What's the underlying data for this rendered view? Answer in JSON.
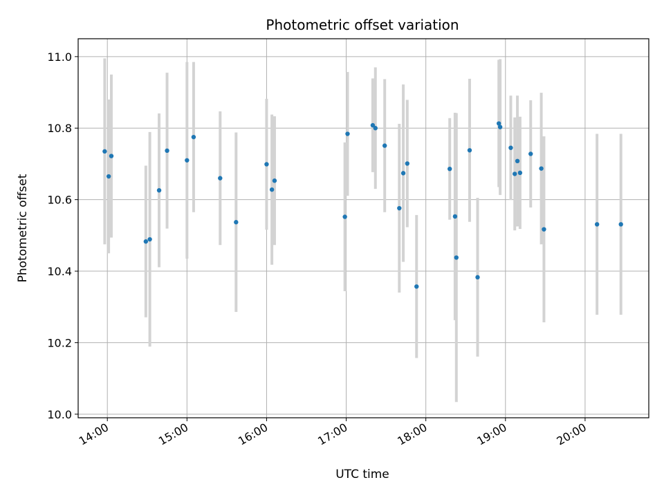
{
  "chart_data": {
    "type": "scatter",
    "title": "Photometric offset variation",
    "xlabel": "UTC time",
    "ylabel": "Photometric offset",
    "x_unit": "UTC hour",
    "xlim": [
      "13:38",
      "20:48"
    ],
    "ylim": [
      9.99,
      11.05
    ],
    "x_ticks": [
      "14:00",
      "15:00",
      "16:00",
      "17:00",
      "18:00",
      "19:00",
      "20:00"
    ],
    "y_ticks": [
      "10.0",
      "10.2",
      "10.4",
      "10.6",
      "10.8",
      "11.0"
    ],
    "grid": true,
    "point_color": "#1f77b4",
    "error_bar_color": "#d3d3d3",
    "points": [
      {
        "x": "13:58",
        "y": 10.735,
        "err": 0.26
      },
      {
        "x": "14:01",
        "y": 10.665,
        "err": 0.215
      },
      {
        "x": "14:03",
        "y": 10.722,
        "err": 0.228
      },
      {
        "x": "14:29",
        "y": 10.483,
        "err": 0.212
      },
      {
        "x": "14:32",
        "y": 10.489,
        "err": 0.3
      },
      {
        "x": "14:39",
        "y": 10.626,
        "err": 0.215
      },
      {
        "x": "14:45",
        "y": 10.737,
        "err": 0.218
      },
      {
        "x": "15:00",
        "y": 10.71,
        "err": 0.275
      },
      {
        "x": "15:05",
        "y": 10.775,
        "err": 0.21
      },
      {
        "x": "15:25",
        "y": 10.66,
        "err": 0.187
      },
      {
        "x": "15:37",
        "y": 10.537,
        "err": 0.251
      },
      {
        "x": "16:00",
        "y": 10.699,
        "err": 0.183
      },
      {
        "x": "16:04",
        "y": 10.628,
        "err": 0.21
      },
      {
        "x": "16:06",
        "y": 10.653,
        "err": 0.18
      },
      {
        "x": "16:59",
        "y": 10.552,
        "err": 0.208
      },
      {
        "x": "17:01",
        "y": 10.784,
        "err": 0.173
      },
      {
        "x": "17:20",
        "y": 10.808,
        "err": 0.131
      },
      {
        "x": "17:22",
        "y": 10.8,
        "err": 0.17
      },
      {
        "x": "17:29",
        "y": 10.751,
        "err": 0.186
      },
      {
        "x": "17:40",
        "y": 10.576,
        "err": 0.236
      },
      {
        "x": "17:43",
        "y": 10.674,
        "err": 0.248
      },
      {
        "x": "17:46",
        "y": 10.701,
        "err": 0.178
      },
      {
        "x": "17:53",
        "y": 10.357,
        "err": 0.2
      },
      {
        "x": "18:18",
        "y": 10.686,
        "err": 0.142
      },
      {
        "x": "18:22",
        "y": 10.553,
        "err": 0.29
      },
      {
        "x": "18:23",
        "y": 10.438,
        "err": 0.404
      },
      {
        "x": "18:33",
        "y": 10.738,
        "err": 0.2
      },
      {
        "x": "18:39",
        "y": 10.383,
        "err": 0.222
      },
      {
        "x": "18:55",
        "y": 10.813,
        "err": 0.178
      },
      {
        "x": "18:56",
        "y": 10.803,
        "err": 0.19
      },
      {
        "x": "19:04",
        "y": 10.745,
        "err": 0.146
      },
      {
        "x": "19:07",
        "y": 10.672,
        "err": 0.158
      },
      {
        "x": "19:09",
        "y": 10.708,
        "err": 0.183
      },
      {
        "x": "19:11",
        "y": 10.675,
        "err": 0.157
      },
      {
        "x": "19:19",
        "y": 10.728,
        "err": 0.15
      },
      {
        "x": "19:27",
        "y": 10.687,
        "err": 0.212
      },
      {
        "x": "19:29",
        "y": 10.517,
        "err": 0.26
      },
      {
        "x": "20:09",
        "y": 10.531,
        "err": 0.253
      },
      {
        "x": "20:27",
        "y": 10.531,
        "err": 0.253
      }
    ]
  }
}
